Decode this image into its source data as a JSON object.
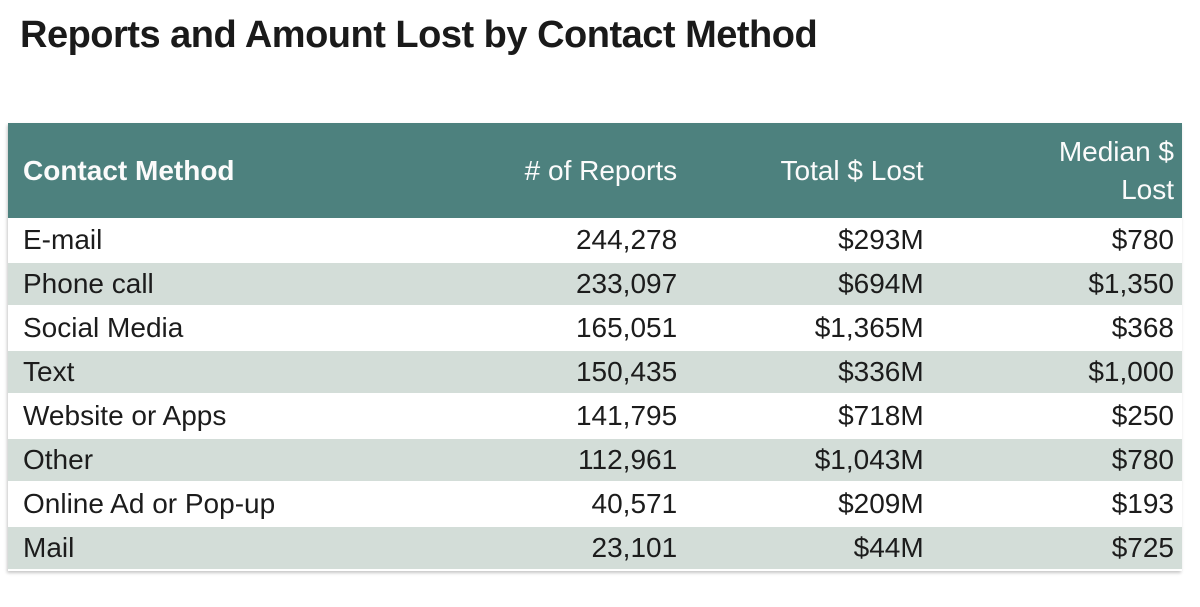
{
  "title": "Reports and Amount Lost by Contact Method",
  "colors": {
    "header_bg": "#4d817e",
    "header_text": "#fbfbfb",
    "stripe_bg": "#d3ddd8",
    "row_bg": "#ffffff",
    "body_text": "#1c1c1c"
  },
  "table": {
    "columns": [
      "Contact Method",
      "# of Reports",
      "Total $ Lost",
      "Median $ Lost"
    ],
    "rows": [
      {
        "method": "E-mail",
        "reports": "244,278",
        "total_lost": "$293M",
        "median_lost": "$780"
      },
      {
        "method": "Phone call",
        "reports": "233,097",
        "total_lost": "$694M",
        "median_lost": "$1,350"
      },
      {
        "method": "Social Media",
        "reports": "165,051",
        "total_lost": "$1,365M",
        "median_lost": "$368"
      },
      {
        "method": "Text",
        "reports": "150,435",
        "total_lost": "$336M",
        "median_lost": "$1,000"
      },
      {
        "method": "Website or Apps",
        "reports": "141,795",
        "total_lost": "$718M",
        "median_lost": "$250"
      },
      {
        "method": "Other",
        "reports": "112,961",
        "total_lost": "$1,043M",
        "median_lost": "$780"
      },
      {
        "method": "Online Ad or Pop-up",
        "reports": "40,571",
        "total_lost": "$209M",
        "median_lost": "$193"
      },
      {
        "method": "Mail",
        "reports": "23,101",
        "total_lost": "$44M",
        "median_lost": "$725"
      }
    ]
  },
  "chart_data": {
    "type": "table",
    "title": "Reports and Amount Lost by Contact Method",
    "columns": [
      "Contact Method",
      "# of Reports",
      "Total $ Lost",
      "Median $ Lost"
    ],
    "rows": [
      {
        "contact_method": "E-mail",
        "num_reports": 244278,
        "total_lost_millions_usd": 293,
        "median_lost_usd": 780
      },
      {
        "contact_method": "Phone call",
        "num_reports": 233097,
        "total_lost_millions_usd": 694,
        "median_lost_usd": 1350
      },
      {
        "contact_method": "Social Media",
        "num_reports": 165051,
        "total_lost_millions_usd": 1365,
        "median_lost_usd": 368
      },
      {
        "contact_method": "Text",
        "num_reports": 150435,
        "total_lost_millions_usd": 336,
        "median_lost_usd": 1000
      },
      {
        "contact_method": "Website or Apps",
        "num_reports": 141795,
        "total_lost_millions_usd": 718,
        "median_lost_usd": 250
      },
      {
        "contact_method": "Other",
        "num_reports": 112961,
        "total_lost_millions_usd": 1043,
        "median_lost_usd": 780
      },
      {
        "contact_method": "Online Ad or Pop-up",
        "num_reports": 40571,
        "total_lost_millions_usd": 209,
        "median_lost_usd": 193
      },
      {
        "contact_method": "Mail",
        "num_reports": 23101,
        "total_lost_millions_usd": 44,
        "median_lost_usd": 725
      }
    ],
    "layout": {
      "header_style": "teal-banded",
      "row_striping": "alternating",
      "numeric_alignment": "right"
    }
  }
}
